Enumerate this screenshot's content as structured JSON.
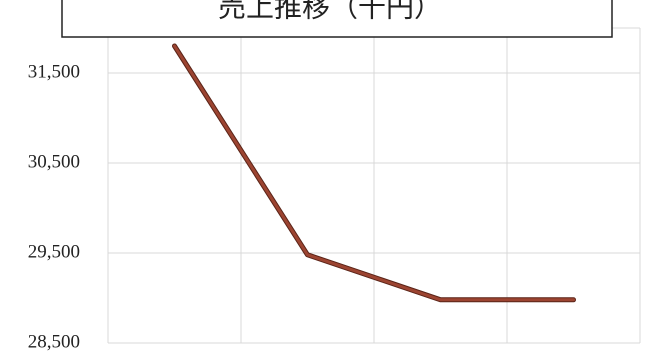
{
  "chart_data": {
    "type": "line",
    "title": "売上推移（千円）",
    "categories": [
      null,
      null,
      null,
      null
    ],
    "series": [
      {
        "name": null,
        "color": "#9c4431",
        "values": [
          31800,
          29480,
          28980,
          28980
        ]
      }
    ],
    "ylim": [
      28500,
      32000
    ],
    "yticks": [
      {
        "value": 28500,
        "label": "28,500"
      },
      {
        "value": 29500,
        "label": "29,500"
      },
      {
        "value": 30500,
        "label": "30,500"
      },
      {
        "value": 31500,
        "label": "31,500"
      }
    ],
    "grid": true
  }
}
